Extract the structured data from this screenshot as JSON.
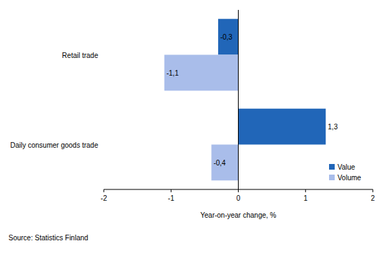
{
  "chart_data": {
    "type": "bar",
    "orientation": "horizontal",
    "x_label": "Year-on-year change, %",
    "source": "Source: Statistics Finland",
    "categories": [
      "Retail trade",
      "Daily consumer goods trade"
    ],
    "series": [
      {
        "name": "Value",
        "color": "#2166b8",
        "values": [
          -0.3,
          1.3
        ],
        "value_labels": [
          "-0,3",
          "1,3"
        ]
      },
      {
        "name": "Volume",
        "color": "#a9bdea",
        "values": [
          -1.1,
          -0.4
        ],
        "value_labels": [
          "-1,1",
          "-0,4"
        ]
      }
    ],
    "xlim": [
      -2,
      2
    ],
    "xticks": [
      -2,
      -1,
      0,
      1,
      2
    ],
    "grid": false,
    "legend": "lower right",
    "data_labels": true
  }
}
